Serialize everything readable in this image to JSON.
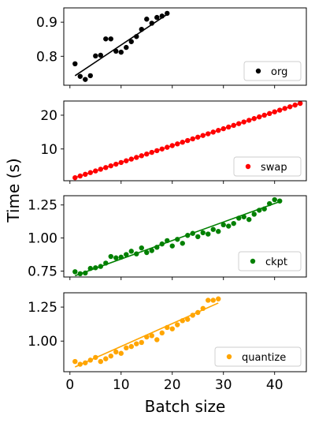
{
  "chart_data": [
    {
      "type": "scatter",
      "legend": "org",
      "legend_position": "lower-right",
      "color": "#000000",
      "xlim": [
        -1.2,
        46.2
      ],
      "ylim": [
        0.715,
        0.942
      ],
      "yticks": [
        0.8,
        0.9
      ],
      "ytick_labels": [
        "0.8",
        "0.9"
      ],
      "x": [
        1,
        2,
        3,
        4,
        5,
        6,
        7,
        8,
        9,
        10,
        11,
        12,
        13,
        14,
        15,
        16,
        17,
        18,
        19
      ],
      "y": [
        0.778,
        0.741,
        0.732,
        0.743,
        0.801,
        0.803,
        0.851,
        0.851,
        0.815,
        0.812,
        0.826,
        0.843,
        0.858,
        0.879,
        0.909,
        0.897,
        0.914,
        0.918,
        0.926
      ],
      "fit": {
        "x": [
          1,
          19
        ],
        "y": [
          0.743,
          0.923
        ]
      }
    },
    {
      "type": "scatter",
      "legend": "swap",
      "legend_position": "lower-right",
      "color": "#ff0000",
      "xlim": [
        -1.2,
        46.2
      ],
      "ylim": [
        0.6,
        24.2
      ],
      "yticks": [
        10,
        20
      ],
      "ytick_labels": [
        "10",
        "20"
      ],
      "x": [
        1,
        2,
        3,
        4,
        5,
        6,
        7,
        8,
        9,
        10,
        11,
        12,
        13,
        14,
        15,
        16,
        17,
        18,
        19,
        20,
        21,
        22,
        23,
        24,
        25,
        26,
        27,
        28,
        29,
        30,
        31,
        32,
        33,
        34,
        35,
        36,
        37,
        38,
        39,
        40,
        41,
        42,
        43,
        44,
        45
      ],
      "y": [
        1.5,
        2.0,
        2.5,
        3.0,
        3.5,
        4.0,
        4.5,
        5.0,
        5.5,
        6.0,
        6.5,
        7.0,
        7.5,
        8.0,
        8.5,
        9.0,
        9.5,
        10.0,
        10.5,
        11.0,
        11.5,
        12.0,
        12.5,
        13.0,
        13.5,
        14.0,
        14.5,
        15.0,
        15.5,
        16.0,
        16.5,
        17.0,
        17.5,
        18.0,
        18.5,
        19.0,
        19.5,
        20.0,
        20.5,
        21.0,
        21.5,
        22.0,
        22.5,
        23.0,
        23.5
      ],
      "fit": {
        "x": [
          1,
          45
        ],
        "y": [
          1.5,
          23.5
        ]
      }
    },
    {
      "type": "scatter",
      "legend": "ckpt",
      "legend_position": "lower-right",
      "color": "#008000",
      "xlim": [
        -1.2,
        46.2
      ],
      "ylim": [
        0.705,
        1.32
      ],
      "yticks": [
        0.75,
        1.0,
        1.25
      ],
      "ytick_labels": [
        "0.75",
        "1.00",
        "1.25"
      ],
      "x": [
        1,
        2,
        3,
        4,
        5,
        6,
        7,
        8,
        9,
        10,
        11,
        12,
        13,
        14,
        15,
        16,
        17,
        18,
        19,
        20,
        21,
        22,
        23,
        24,
        25,
        26,
        27,
        28,
        29,
        30,
        31,
        32,
        33,
        34,
        35,
        36,
        37,
        38,
        39,
        40,
        41
      ],
      "y": [
        0.745,
        0.73,
        0.735,
        0.77,
        0.775,
        0.785,
        0.81,
        0.86,
        0.85,
        0.855,
        0.875,
        0.9,
        0.88,
        0.925,
        0.89,
        0.905,
        0.93,
        0.955,
        0.98,
        0.94,
        0.99,
        0.96,
        1.02,
        1.035,
        1.01,
        1.04,
        1.03,
        1.065,
        1.05,
        1.1,
        1.09,
        1.11,
        1.15,
        1.16,
        1.14,
        1.18,
        1.21,
        1.22,
        1.26,
        1.29,
        1.28
      ],
      "fit": {
        "x": [
          1,
          41
        ],
        "y": [
          0.715,
          1.275
        ]
      }
    },
    {
      "type": "scatter",
      "legend": "quantize",
      "legend_position": "lower-right",
      "color": "#ffa500",
      "xlim": [
        -1.2,
        46.2
      ],
      "ylim": [
        0.775,
        1.355
      ],
      "yticks": [
        1.0,
        1.25
      ],
      "ytick_labels": [
        "1.00",
        "1.25"
      ],
      "xticks": [
        0,
        10,
        20,
        30,
        40
      ],
      "xtick_labels": [
        "0",
        "10",
        "20",
        "30",
        "40"
      ],
      "x": [
        1,
        2,
        3,
        4,
        5,
        6,
        7,
        8,
        9,
        10,
        11,
        12,
        13,
        14,
        15,
        16,
        17,
        18,
        19,
        20,
        21,
        22,
        23,
        24,
        25,
        26,
        27,
        28,
        29
      ],
      "y": [
        0.85,
        0.83,
        0.84,
        0.86,
        0.88,
        0.85,
        0.87,
        0.89,
        0.92,
        0.91,
        0.95,
        0.96,
        0.98,
        0.99,
        1.03,
        1.04,
        1.01,
        1.06,
        1.1,
        1.09,
        1.12,
        1.15,
        1.16,
        1.19,
        1.21,
        1.24,
        1.3,
        1.3,
        1.31
      ],
      "fit": {
        "x": [
          1,
          29
        ],
        "y": [
          0.81,
          1.28
        ]
      }
    }
  ],
  "xlabel": "Batch size",
  "ylabel": "Time (s)"
}
